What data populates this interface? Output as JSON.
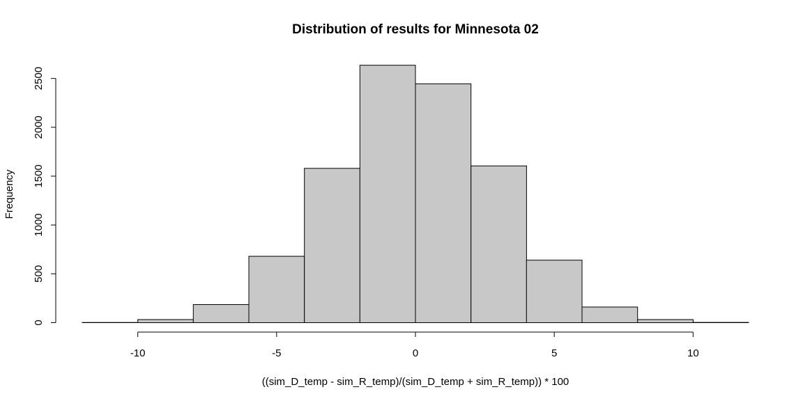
{
  "chart_data": {
    "type": "bar",
    "title": "Distribution of results for Minnesota 02",
    "xlabel": "((sim_D_temp - sim_R_temp)/(sim_D_temp + sim_R_temp)) * 100",
    "ylabel": "Frequency",
    "xlim": [
      -12,
      12
    ],
    "ylim": [
      0,
      2640
    ],
    "x_ticks": [
      -10,
      -5,
      0,
      5,
      10
    ],
    "y_ticks": [
      0,
      500,
      1000,
      1500,
      2000,
      2500
    ],
    "bins": [
      {
        "x0": -12,
        "x1": -10,
        "count": 2
      },
      {
        "x0": -10,
        "x1": -8,
        "count": 32
      },
      {
        "x0": -8,
        "x1": -6,
        "count": 185
      },
      {
        "x0": -6,
        "x1": -4,
        "count": 680
      },
      {
        "x0": -4,
        "x1": -2,
        "count": 1580
      },
      {
        "x0": -2,
        "x1": 0,
        "count": 2635
      },
      {
        "x0": 0,
        "x1": 2,
        "count": 2445
      },
      {
        "x0": 2,
        "x1": 4,
        "count": 1605
      },
      {
        "x0": 4,
        "x1": 6,
        "count": 640
      },
      {
        "x0": 6,
        "x1": 8,
        "count": 160
      },
      {
        "x0": 8,
        "x1": 10,
        "count": 32
      },
      {
        "x0": 10,
        "x1": 12,
        "count": 3
      }
    ],
    "bar_color": "#c8c8c8",
    "grid": false
  }
}
